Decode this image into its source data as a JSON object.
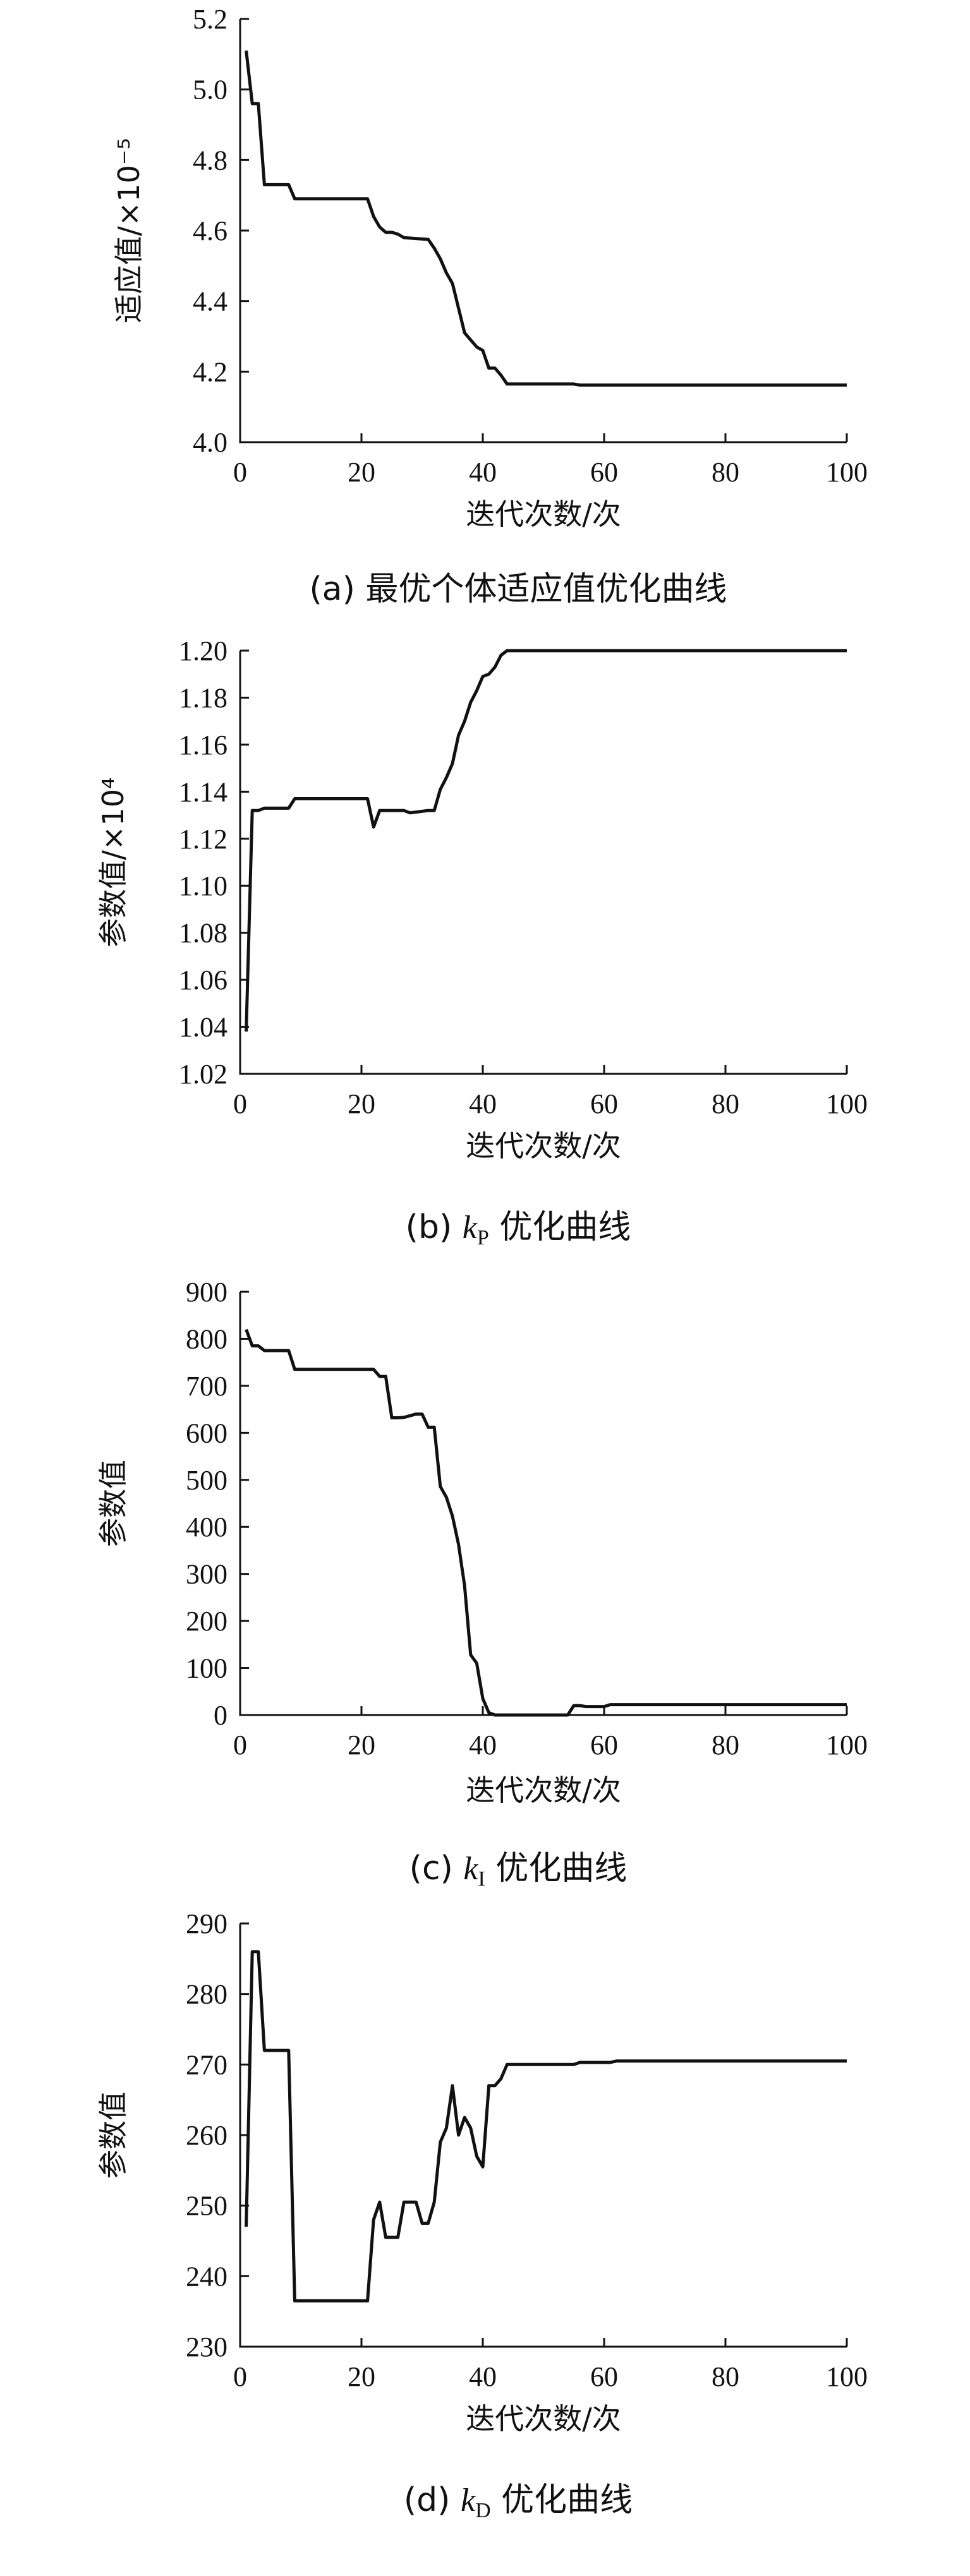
{
  "chart_data": [
    {
      "type": "line",
      "caption": "(a) 最优个体适应值优化曲线",
      "xlabel": "迭代次数/次",
      "ylabel": "适应值/×10⁻⁵",
      "xlim": [
        0,
        100
      ],
      "ylim": [
        4.0,
        5.2
      ],
      "xticks": [
        "0",
        "20",
        "40",
        "60",
        "80",
        "100"
      ],
      "yticks": [
        "4.0",
        "4.2",
        "4.4",
        "4.6",
        "4.8",
        "5.0",
        "5.2"
      ],
      "grid": false,
      "x": [
        1,
        2,
        3,
        4,
        8,
        9,
        21,
        22,
        23,
        24,
        25,
        26,
        27,
        31,
        32,
        33,
        34,
        35,
        36,
        37,
        38,
        39,
        40,
        41,
        42,
        43,
        44,
        55,
        56,
        100
      ],
      "y": [
        5.11,
        4.96,
        4.96,
        4.73,
        4.73,
        4.69,
        4.69,
        4.64,
        4.61,
        4.595,
        4.595,
        4.59,
        4.58,
        4.575,
        4.55,
        4.52,
        4.48,
        4.45,
        4.38,
        4.31,
        4.29,
        4.27,
        4.26,
        4.21,
        4.21,
        4.19,
        4.165,
        4.165,
        4.162,
        4.162
      ]
    },
    {
      "type": "line",
      "caption": "(b) kP 优化曲线",
      "caption_main": "(b) ",
      "caption_k": "k",
      "caption_sub": "P",
      "caption_tail": " 优化曲线",
      "xlabel": "迭代次数/次",
      "ylabel": "参数值/×10⁴",
      "xlim": [
        0,
        100
      ],
      "ylim": [
        1.02,
        1.2
      ],
      "xticks": [
        "0",
        "20",
        "40",
        "60",
        "80",
        "100"
      ],
      "yticks": [
        "1.02",
        "1.04",
        "1.06",
        "1.08",
        "1.10",
        "1.12",
        "1.14",
        "1.16",
        "1.18",
        "1.20"
      ],
      "grid": false,
      "x": [
        1,
        2,
        3,
        4,
        8,
        9,
        21,
        22,
        23,
        24,
        26,
        27,
        28,
        31,
        32,
        33,
        34,
        35,
        36,
        37,
        38,
        39,
        40,
        41,
        42,
        43,
        44,
        100
      ],
      "y": [
        1.038,
        1.132,
        1.132,
        1.133,
        1.133,
        1.137,
        1.137,
        1.125,
        1.132,
        1.132,
        1.132,
        1.132,
        1.131,
        1.132,
        1.132,
        1.141,
        1.146,
        1.152,
        1.164,
        1.17,
        1.178,
        1.183,
        1.189,
        1.19,
        1.193,
        1.198,
        1.2,
        1.2
      ]
    },
    {
      "type": "line",
      "caption": "(c) kI 优化曲线",
      "caption_main": "(c) ",
      "caption_k": "k",
      "caption_sub": "I",
      "caption_tail": " 优化曲线",
      "xlabel": "迭代次数/次",
      "ylabel": "参数值",
      "xlim": [
        0,
        100
      ],
      "ylim": [
        0,
        900
      ],
      "xticks": [
        "0",
        "20",
        "40",
        "60",
        "80",
        "100"
      ],
      "yticks": [
        "0",
        "100",
        "200",
        "300",
        "400",
        "500",
        "600",
        "700",
        "800",
        "900"
      ],
      "grid": false,
      "x": [
        1,
        2,
        3,
        4,
        8,
        9,
        22,
        23,
        24,
        25,
        26,
        27,
        29,
        30,
        31,
        32,
        33,
        34,
        35,
        36,
        37,
        38,
        39,
        40,
        41,
        42,
        43,
        44,
        54,
        55,
        56,
        57,
        58,
        60,
        61,
        100
      ],
      "y": [
        820,
        785,
        785,
        775,
        775,
        735,
        735,
        720,
        720,
        632,
        632,
        633,
        640,
        640,
        612,
        612,
        486,
        463,
        423,
        363,
        275,
        128,
        110,
        35,
        5,
        0,
        0,
        0,
        0,
        20,
        20,
        18,
        18,
        18,
        22,
        22
      ]
    },
    {
      "type": "line",
      "caption": "(d) kD 优化曲线",
      "caption_main": "(d) ",
      "caption_k": "k",
      "caption_sub": "D",
      "caption_tail": " 优化曲线",
      "xlabel": "迭代次数/次",
      "ylabel": "参数值",
      "xlim": [
        0,
        100
      ],
      "ylim": [
        230,
        290
      ],
      "xticks": [
        "0",
        "20",
        "40",
        "60",
        "80",
        "100"
      ],
      "yticks": [
        "230",
        "240",
        "250",
        "260",
        "270",
        "280",
        "290"
      ],
      "grid": false,
      "x": [
        1,
        2,
        3,
        4,
        8,
        9,
        21,
        22,
        23,
        24,
        25,
        26,
        27,
        28,
        29,
        30,
        31,
        32,
        33,
        34,
        35,
        36,
        37,
        38,
        39,
        40,
        41,
        42,
        43,
        44,
        55,
        56,
        61,
        62,
        100
      ],
      "y": [
        247,
        286,
        286,
        272,
        272,
        236.5,
        236.5,
        248,
        250.5,
        245.5,
        245.5,
        245.5,
        250.5,
        250.5,
        250.5,
        247.5,
        247.5,
        250.5,
        259,
        261,
        267,
        260,
        262.5,
        261,
        257,
        255.5,
        267,
        267,
        268,
        270,
        270,
        270.3,
        270.3,
        270.5,
        270.5
      ]
    }
  ]
}
